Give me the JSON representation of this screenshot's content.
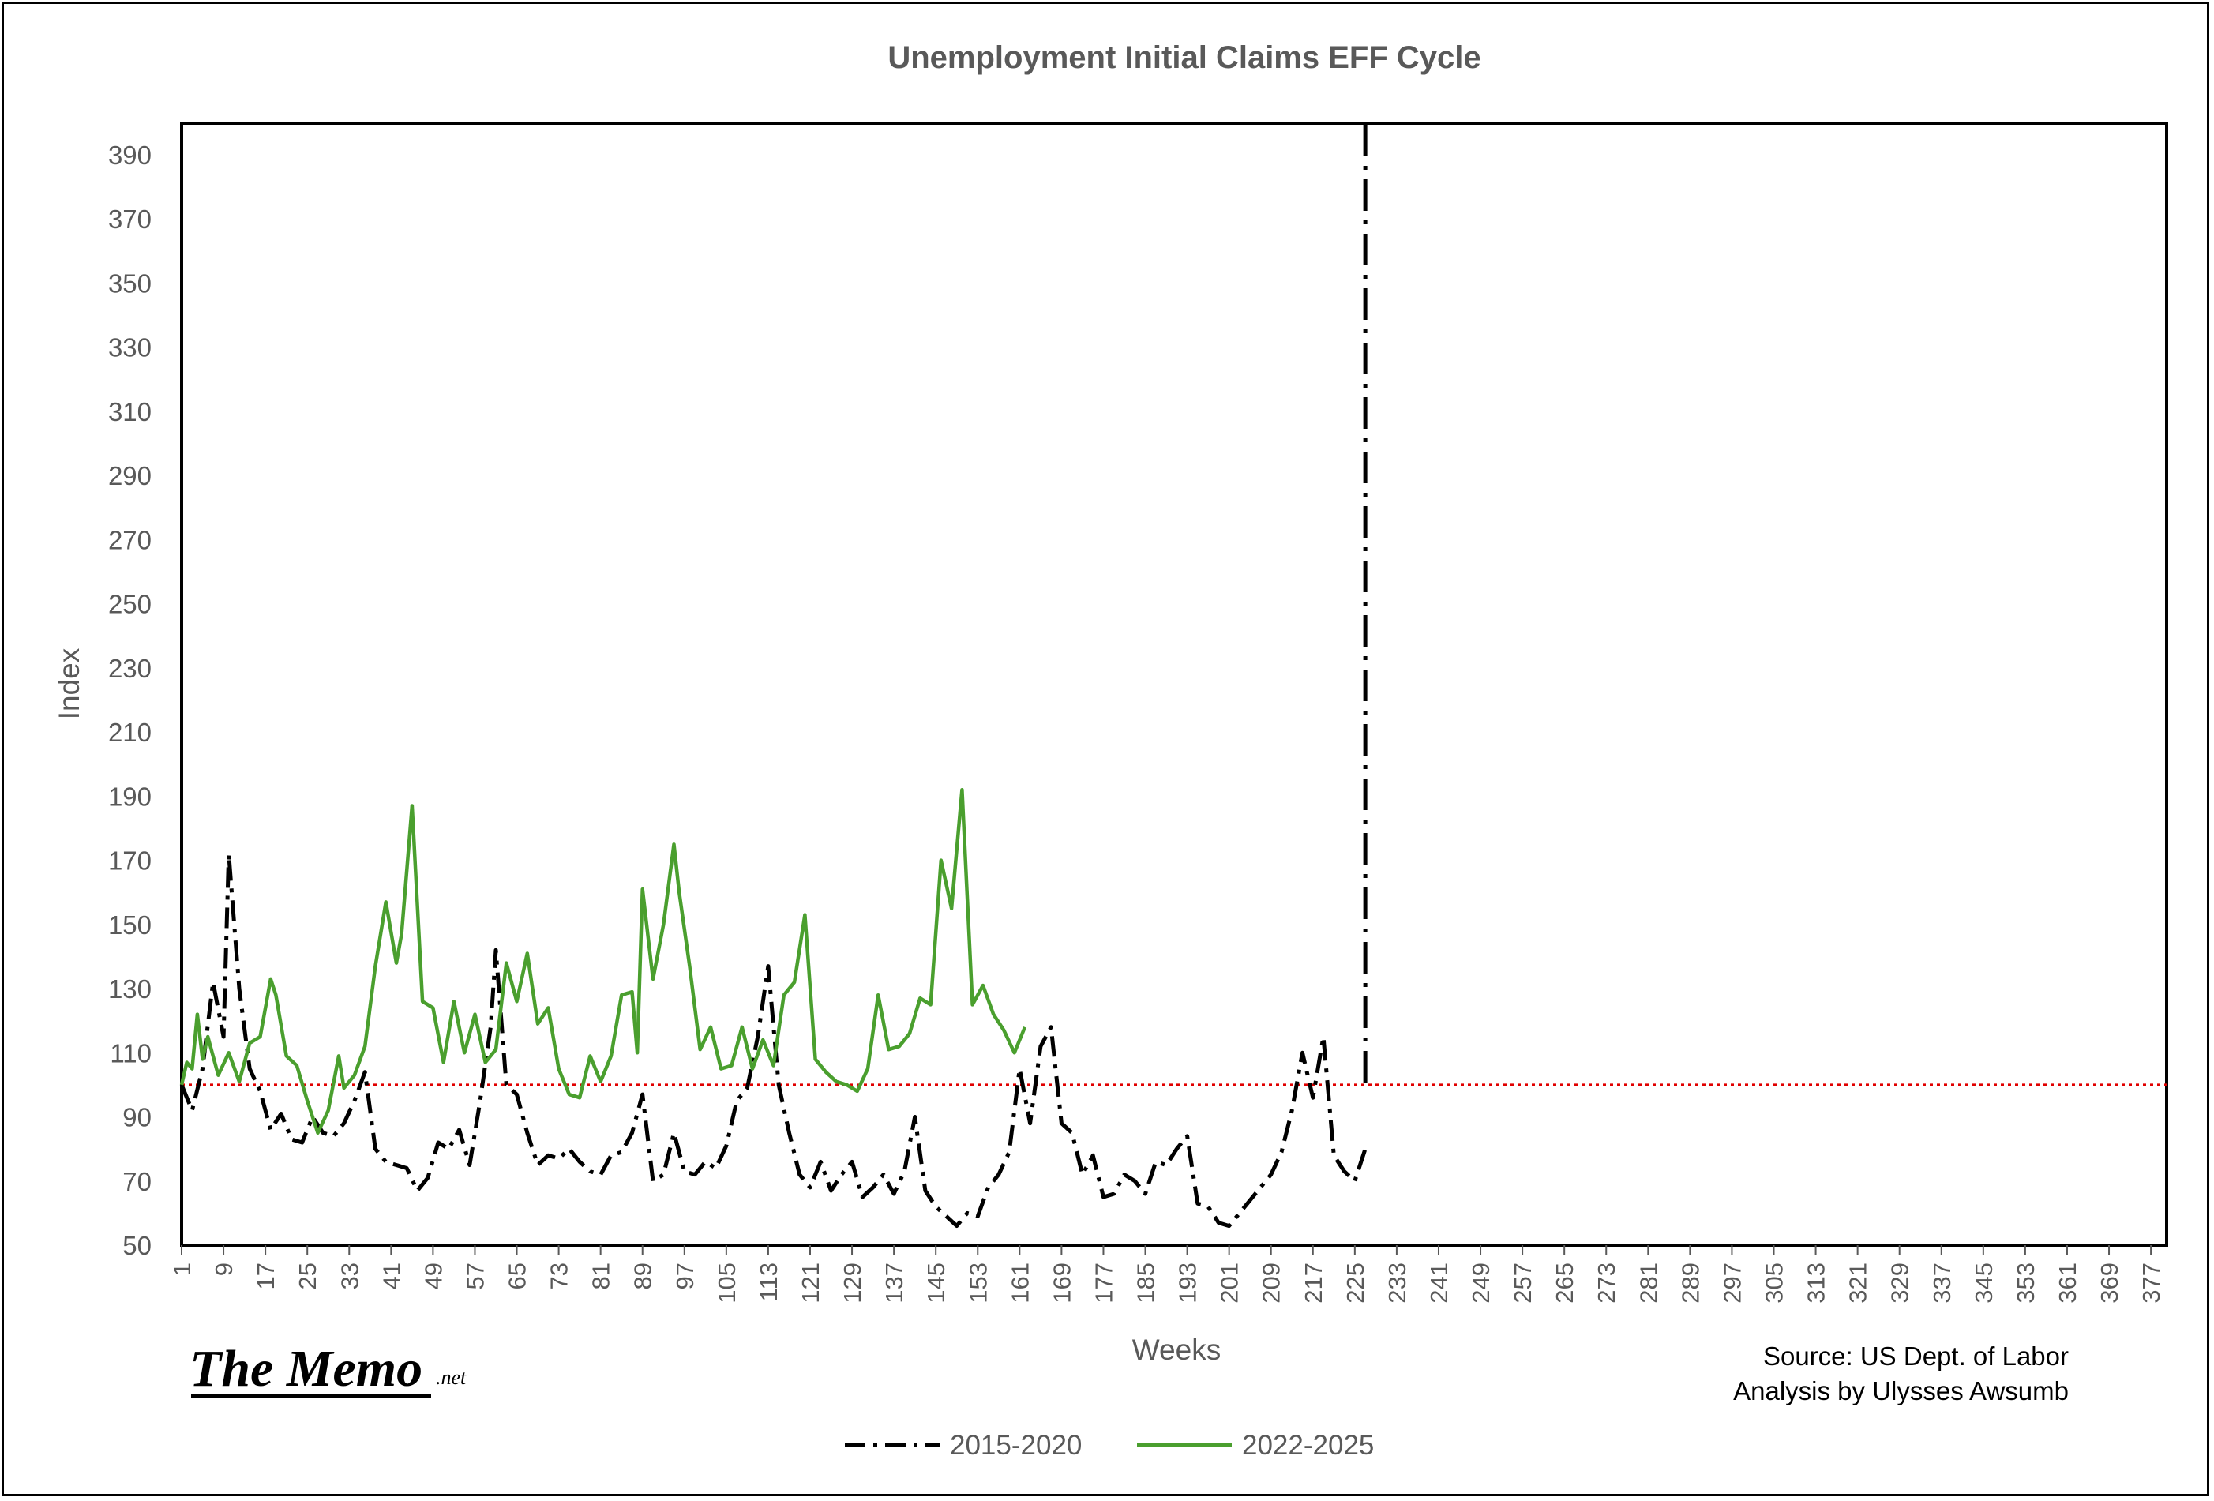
{
  "chart_data": {
    "type": "line",
    "title": "Unemployment Initial Claims EFF Cycle",
    "xlabel": "Weeks",
    "ylabel": "Index",
    "ylim": [
      50,
      390
    ],
    "yticks": [
      50,
      70,
      90,
      110,
      130,
      150,
      170,
      190,
      210,
      230,
      250,
      270,
      290,
      310,
      330,
      350,
      370,
      390
    ],
    "xlim": [
      1,
      380
    ],
    "xticks": [
      1,
      9,
      17,
      25,
      33,
      41,
      49,
      57,
      65,
      73,
      81,
      89,
      97,
      105,
      113,
      121,
      129,
      137,
      145,
      153,
      161,
      169,
      177,
      185,
      193,
      201,
      209,
      217,
      225,
      233,
      241,
      249,
      257,
      265,
      273,
      281,
      289,
      297,
      305,
      313,
      321,
      329,
      337,
      345,
      353,
      361,
      369,
      377
    ],
    "reference_line": {
      "y": 100,
      "color": "#e00000"
    },
    "vertical_line": {
      "x": 227,
      "ylim": [
        100,
        390
      ]
    },
    "legend_position": "bottom",
    "series": [
      {
        "name": "2015-2020",
        "color": "#000000",
        "style": "dash-dot",
        "x": [
          1,
          3,
          5,
          7,
          9,
          10,
          12,
          14,
          16,
          18,
          20,
          22,
          24,
          26,
          28,
          30,
          32,
          34,
          36,
          38,
          40,
          42,
          44,
          46,
          48,
          50,
          52,
          54,
          56,
          58,
          60,
          61,
          63,
          65,
          67,
          69,
          71,
          73,
          75,
          77,
          79,
          81,
          83,
          85,
          87,
          89,
          91,
          93,
          95,
          97,
          99,
          101,
          103,
          105,
          107,
          109,
          111,
          113,
          115,
          117,
          119,
          121,
          123,
          125,
          127,
          129,
          131,
          133,
          135,
          137,
          139,
          141,
          143,
          145,
          147,
          149,
          151,
          153,
          155,
          157,
          159,
          161,
          163,
          165,
          167,
          169,
          171,
          173,
          175,
          177,
          179,
          181,
          183,
          185,
          187,
          189,
          191,
          193,
          195,
          197,
          199,
          201,
          203,
          205,
          207,
          209,
          211,
          213,
          215,
          217,
          219,
          221,
          223,
          225,
          227
        ],
        "values": [
          100,
          92,
          105,
          132,
          115,
          172,
          130,
          105,
          98,
          86,
          91,
          83,
          82,
          90,
          85,
          84,
          88,
          95,
          104,
          80,
          76,
          75,
          74,
          67,
          71,
          82,
          80,
          86,
          75,
          95,
          118,
          142,
          100,
          97,
          85,
          75,
          78,
          77,
          80,
          76,
          73,
          72,
          78,
          79,
          85,
          97,
          70,
          72,
          85,
          73,
          72,
          76,
          74,
          81,
          95,
          99,
          115,
          137,
          100,
          85,
          72,
          68,
          76,
          67,
          72,
          76,
          65,
          68,
          72,
          66,
          73,
          90,
          67,
          62,
          59,
          56,
          60,
          59,
          68,
          72,
          79,
          105,
          88,
          112,
          118,
          88,
          85,
          72,
          78,
          65,
          66,
          72,
          70,
          66,
          76,
          75,
          80,
          84,
          63,
          62,
          57,
          56,
          60,
          64,
          68,
          72,
          79,
          92,
          110,
          96,
          115,
          78,
          73,
          70,
          80
        ]
      },
      {
        "name": "2022-2025",
        "color": "#4a9f2e",
        "style": "solid",
        "x": [
          1,
          2,
          3,
          4,
          5,
          6,
          8,
          10,
          12,
          14,
          16,
          18,
          19,
          21,
          23,
          25,
          27,
          29,
          31,
          32,
          34,
          36,
          38,
          40,
          42,
          43,
          45,
          47,
          49,
          51,
          53,
          55,
          57,
          59,
          61,
          63,
          65,
          67,
          69,
          71,
          73,
          75,
          77,
          79,
          81,
          83,
          85,
          87,
          88,
          89,
          91,
          93,
          95,
          96,
          98,
          100,
          102,
          104,
          106,
          108,
          110,
          112,
          114,
          116,
          118,
          120,
          122,
          124,
          126,
          128,
          130,
          132,
          134,
          136,
          138,
          140,
          142,
          144,
          146,
          148,
          150,
          152,
          154,
          156,
          158,
          160,
          162
        ],
        "values": [
          100,
          107,
          105,
          122,
          108,
          115,
          103,
          110,
          101,
          113,
          115,
          133,
          128,
          109,
          106,
          95,
          85,
          92,
          109,
          99,
          103,
          112,
          137,
          157,
          138,
          147,
          187,
          126,
          124,
          107,
          126,
          110,
          122,
          107,
          111,
          138,
          126,
          141,
          119,
          124,
          105,
          97,
          96,
          109,
          101,
          109,
          128,
          129,
          110,
          161,
          133,
          150,
          175,
          160,
          137,
          111,
          118,
          105,
          106,
          118,
          105,
          114,
          106,
          128,
          132,
          153,
          108,
          104,
          101,
          100,
          98,
          105,
          128,
          111,
          112,
          116,
          127,
          125,
          170,
          155,
          192,
          125,
          131,
          122,
          117,
          110,
          118
        ]
      }
    ]
  },
  "notes": {
    "source": "Source: US Dept. of Labor",
    "analysis": "Analysis by Ulysses Awsumb"
  },
  "logo": {
    "main": "The Memo",
    "suffix": ".net"
  }
}
